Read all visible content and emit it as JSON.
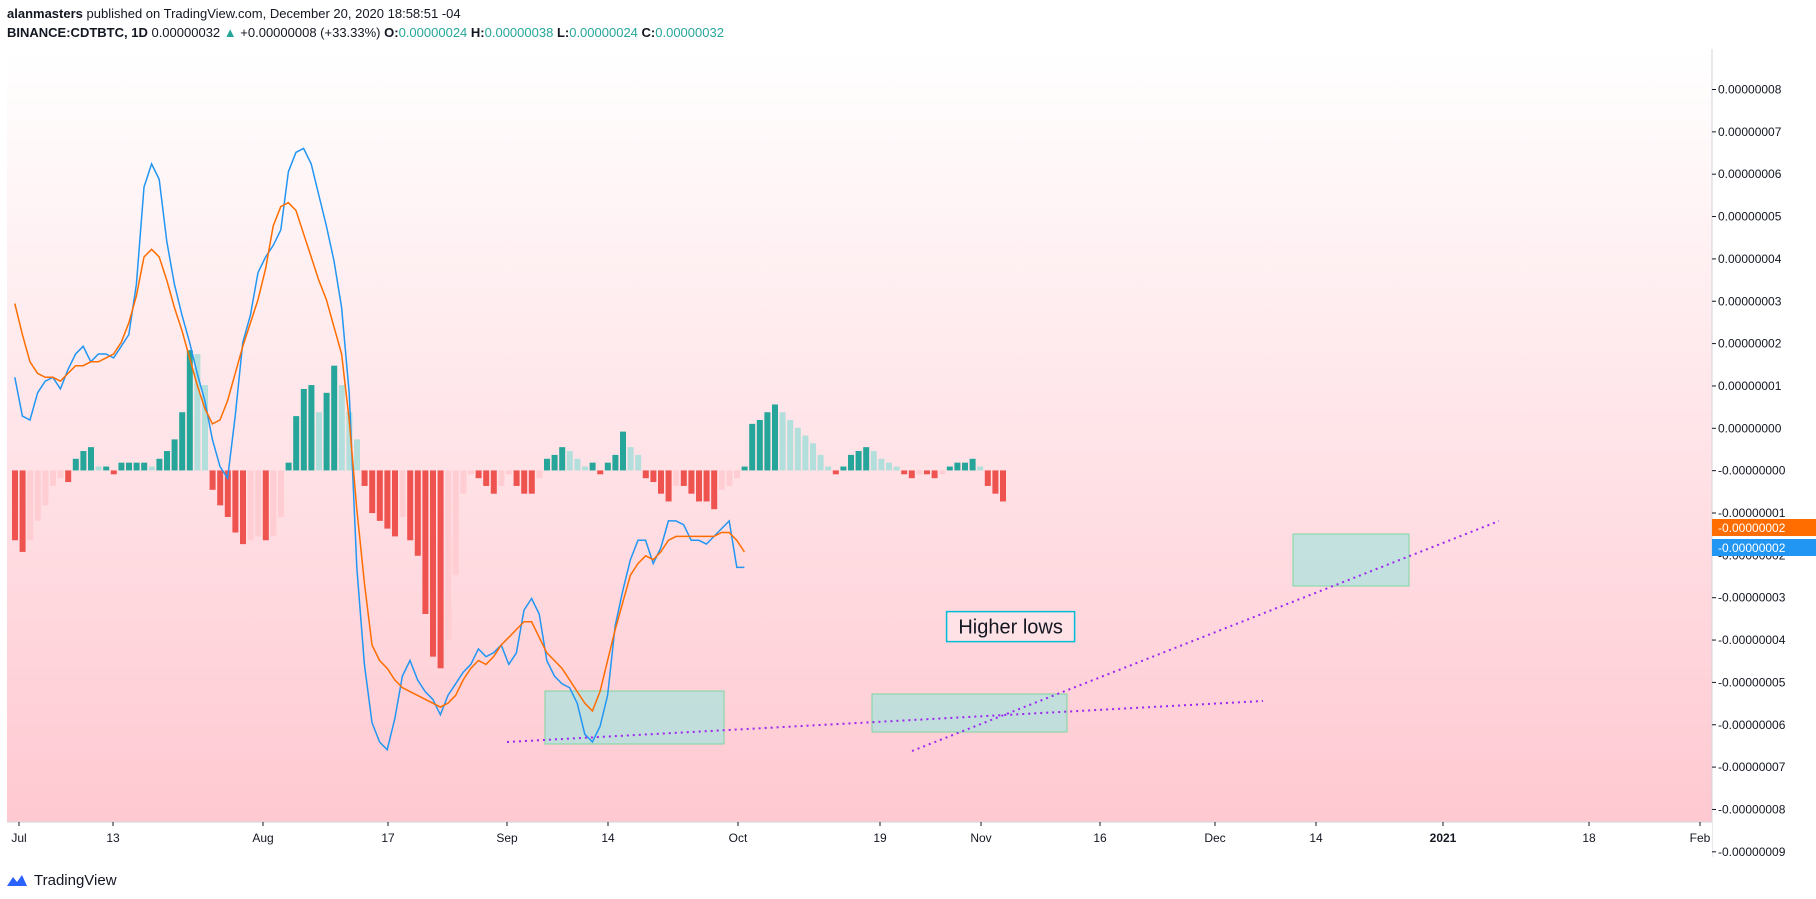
{
  "header": {
    "author": "alanmasters",
    "published_text": "published on TradingView.com, December 20, 2020 18:58:51 -04",
    "symbol": "BINANCE:CDTBTC, 1D",
    "last": "0.00000032",
    "change": "+0.00000008 (+33.33%)",
    "o_label": "O:",
    "o_value": "0.00000024",
    "h_label": "H:",
    "h_value": "0.00000038",
    "l_label": "L:",
    "l_value": "0.00000024",
    "c_label": "C:",
    "c_value": "0.00000032"
  },
  "footer": {
    "brand": "TradingView"
  },
  "colors": {
    "macd": "#2196f3",
    "signal": "#ff6d00",
    "hist_up_strong": "#26a69a",
    "hist_up_weak": "#b2dfdb",
    "hist_down_strong": "#ef5350",
    "hist_down_weak": "#ffcdd2",
    "trendline": "#9c27f0",
    "box_fill": "#aee3dd",
    "box_border": "#7fd6a0",
    "bg_top": "#ffffff",
    "bg_bottom": "#ffc6cf"
  },
  "chart_data": {
    "type": "line",
    "title": "",
    "xlabel": "",
    "ylabel": "",
    "ylim": [
      -9.5e-09,
      8.8e-09
    ],
    "x_ticks": [
      {
        "label": "Jul",
        "i": 0
      },
      {
        "label": "13",
        "i": 12
      },
      {
        "label": "Aug",
        "i": 31
      },
      {
        "label": "17",
        "i": 47
      },
      {
        "label": "Sep",
        "i": 62
      },
      {
        "label": "14",
        "i": 75
      },
      {
        "label": "Oct",
        "i": 92
      },
      {
        "label": "19",
        "i": 110
      },
      {
        "label": "Nov",
        "i": 123
      },
      {
        "label": "16",
        "i": 138
      },
      {
        "label": "Dec",
        "i": 153
      },
      {
        "label": "14",
        "i": 166
      },
      {
        "label": "2021",
        "i": 184
      },
      {
        "label": "18",
        "i": 201
      },
      {
        "label": "Feb",
        "i": 215
      }
    ],
    "y_ticks": [
      "0.00000008",
      "0.00000007",
      "0.00000006",
      "0.00000005",
      "0.00000004",
      "0.00000003",
      "0.00000002",
      "0.00000001",
      "0.00000000",
      "-0.00000000",
      "-0.00000001",
      "-0.00000002",
      "-0.00000003",
      "-0.00000004",
      "-0.00000005",
      "-0.00000006",
      "-0.00000007",
      "-0.00000008",
      "-0.00000009"
    ],
    "price_labels": [
      {
        "label": "-0.00000002",
        "series": "signal",
        "value": -2.1e-09
      },
      {
        "label": "-0.00000002",
        "series": "macd",
        "value": -2.6e-09
      }
    ],
    "series": [
      {
        "key": "macd",
        "values": [
          2.4e-09,
          1.4e-09,
          1.3e-09,
          2e-09,
          2.3e-09,
          2.4e-09,
          2.1e-09,
          2.6e-09,
          3e-09,
          3.2e-09,
          2.8e-09,
          3e-09,
          3e-09,
          2.9e-09,
          3.2e-09,
          3.5e-09,
          4.8e-09,
          7.3e-09,
          7.9e-09,
          7.5e-09,
          5.9e-09,
          4.8e-09,
          4e-09,
          3.3e-09,
          2.5e-09,
          1.8e-09,
          8e-10,
          1e-10,
          -2e-10,
          1.4e-09,
          3.3e-09,
          4e-09,
          5.1e-09,
          5.5e-09,
          5.8e-09,
          6.2e-09,
          7.7e-09,
          8.2e-09,
          8.3e-09,
          7.9e-09,
          7.1e-09,
          6.3e-09,
          5.4e-09,
          4.2e-09,
          2e-09,
          -2.5e-09,
          -5e-09,
          -6.5e-09,
          -7e-09,
          -7.2e-09,
          -6.4e-09,
          -5.3e-09,
          -4.9e-09,
          -5.4e-09,
          -5.7e-09,
          -5.9e-09,
          -6.3e-09,
          -5.8e-09,
          -5.5e-09,
          -5.2e-09,
          -5e-09,
          -4.6e-09,
          -4.8e-09,
          -4.7e-09,
          -4.5e-09,
          -5e-09,
          -4.7e-09,
          -3.6e-09,
          -3.3e-09,
          -3.7e-09,
          -4.9e-09,
          -5.3e-09,
          -5.5e-09,
          -5.6e-09,
          -6e-09,
          -6.8e-09,
          -7e-09,
          -6.6e-09,
          -5.8e-09,
          -4e-09,
          -3.1e-09,
          -2.3e-09,
          -1.8e-09,
          -1.8e-09,
          -2.4e-09,
          -2e-09,
          -1.3e-09,
          -1.3e-09,
          -1.4e-09,
          -1.8e-09,
          -1.8e-09,
          -1.9e-09,
          -1.7e-09,
          -1.5e-09,
          -1.3e-09,
          -2.5e-09,
          -2.5e-09
        ]
      },
      {
        "key": "signal",
        "values": [
          4.3e-09,
          3.5e-09,
          2.8e-09,
          2.5e-09,
          2.4e-09,
          2.4e-09,
          2.3e-09,
          2.5e-09,
          2.7e-09,
          2.7e-09,
          2.8e-09,
          2.8e-09,
          2.9e-09,
          3e-09,
          3.3e-09,
          3.8e-09,
          4.5e-09,
          5.5e-09,
          5.7e-09,
          5.5e-09,
          4.9e-09,
          4.2e-09,
          3.6e-09,
          2.9e-09,
          2.2e-09,
          1.6e-09,
          1.2e-09,
          1.3e-09,
          1.8e-09,
          2.5e-09,
          3.2e-09,
          3.8e-09,
          4.4e-09,
          5.2e-09,
          6.3e-09,
          6.8e-09,
          6.9e-09,
          6.7e-09,
          6.1e-09,
          5.5e-09,
          4.9e-09,
          4.4e-09,
          3.7e-09,
          3e-09,
          1.3e-09,
          -1e-09,
          -2.9e-09,
          -4.5e-09,
          -4.9e-09,
          -5.1e-09,
          -5.4e-09,
          -5.6e-09,
          -5.7e-09,
          -5.8e-09,
          -5.9e-09,
          -6e-09,
          -6.1e-09,
          -6e-09,
          -5.8e-09,
          -5.4e-09,
          -5.1e-09,
          -4.9e-09,
          -5e-09,
          -4.8e-09,
          -4.5e-09,
          -4.3e-09,
          -4.1e-09,
          -3.9e-09,
          -3.9e-09,
          -4.3e-09,
          -4.7e-09,
          -4.9e-09,
          -5.1e-09,
          -5.4e-09,
          -5.7e-09,
          -6e-09,
          -6.2e-09,
          -5.7e-09,
          -4.9e-09,
          -4.1e-09,
          -3.4e-09,
          -2.7e-09,
          -2.4e-09,
          -2.2e-09,
          -2.3e-09,
          -2.1e-09,
          -1.8e-09,
          -1.7e-09,
          -1.7e-09,
          -1.7e-09,
          -1.7e-09,
          -1.7e-09,
          -1.7e-09,
          -1.6e-09,
          -1.6e-09,
          -1.8e-09,
          -2.1e-09
        ]
      }
    ],
    "histogram": [
      -1.8e-09,
      -2.1e-09,
      -1.8e-09,
      -1.3e-09,
      -9e-10,
      -4e-10,
      -2e-10,
      -3e-10,
      3e-10,
      5e-10,
      6e-10,
      1e-10,
      1e-10,
      -1e-10,
      2e-10,
      2e-10,
      2e-10,
      2e-10,
      1e-10,
      3e-10,
      5e-10,
      8e-10,
      1.5e-09,
      3.1e-09,
      3e-09,
      2.2e-09,
      -5e-10,
      -9e-10,
      -1.2e-09,
      -1.6e-09,
      -1.9e-09,
      -1.8e-09,
      -1.7e-09,
      -1.8e-09,
      -1.7e-09,
      -1.2e-09,
      2e-10,
      1.4e-09,
      2.1e-09,
      2.2e-09,
      1.5e-09,
      2e-09,
      2.7e-09,
      2.2e-09,
      1.5e-09,
      8e-10,
      -4e-10,
      -1.1e-09,
      -1.3e-09,
      -1.5e-09,
      -1.7e-09,
      -1.2e-09,
      -1.8e-09,
      -2.2e-09,
      -3.7e-09,
      -4.8e-09,
      -5.1e-09,
      -4.4e-09,
      -2.7e-09,
      -6e-10,
      -1e-10,
      -2e-10,
      -4e-10,
      -6e-10,
      -4e-10,
      -1e-10,
      -4e-10,
      -6e-10,
      -6e-10,
      -2e-10,
      3e-10,
      4e-10,
      6e-10,
      5e-10,
      3e-10,
      1e-10,
      2e-10,
      -1e-10,
      2e-10,
      4e-10,
      1e-09,
      6e-10,
      4e-10,
      -2e-10,
      -3e-10,
      -6e-10,
      -8e-10,
      -4e-10,
      -4e-10,
      -6e-10,
      -8e-10,
      -8e-10,
      -1e-09,
      -5e-10,
      -4e-10,
      -2e-10,
      1e-10,
      1.2e-09,
      1.3e-09,
      1.5e-09,
      1.7e-09,
      1.5e-09,
      1.3e-09,
      1.1e-09,
      9e-10,
      7e-10,
      4e-10,
      1e-10,
      -1e-10,
      1e-10,
      4e-10,
      5e-10,
      6e-10,
      5e-10,
      3e-10,
      2e-10,
      1e-10,
      -1e-10,
      -2e-10,
      -1e-10,
      -1e-10,
      -2e-10,
      -1e-10,
      1e-10,
      2e-10,
      2e-10,
      3e-10,
      1e-10,
      -4e-10,
      -6e-10,
      -8e-10
    ],
    "annotations": [
      {
        "type": "text",
        "text": "Higher lows",
        "i": 131,
        "value": -4e-09
      }
    ]
  }
}
